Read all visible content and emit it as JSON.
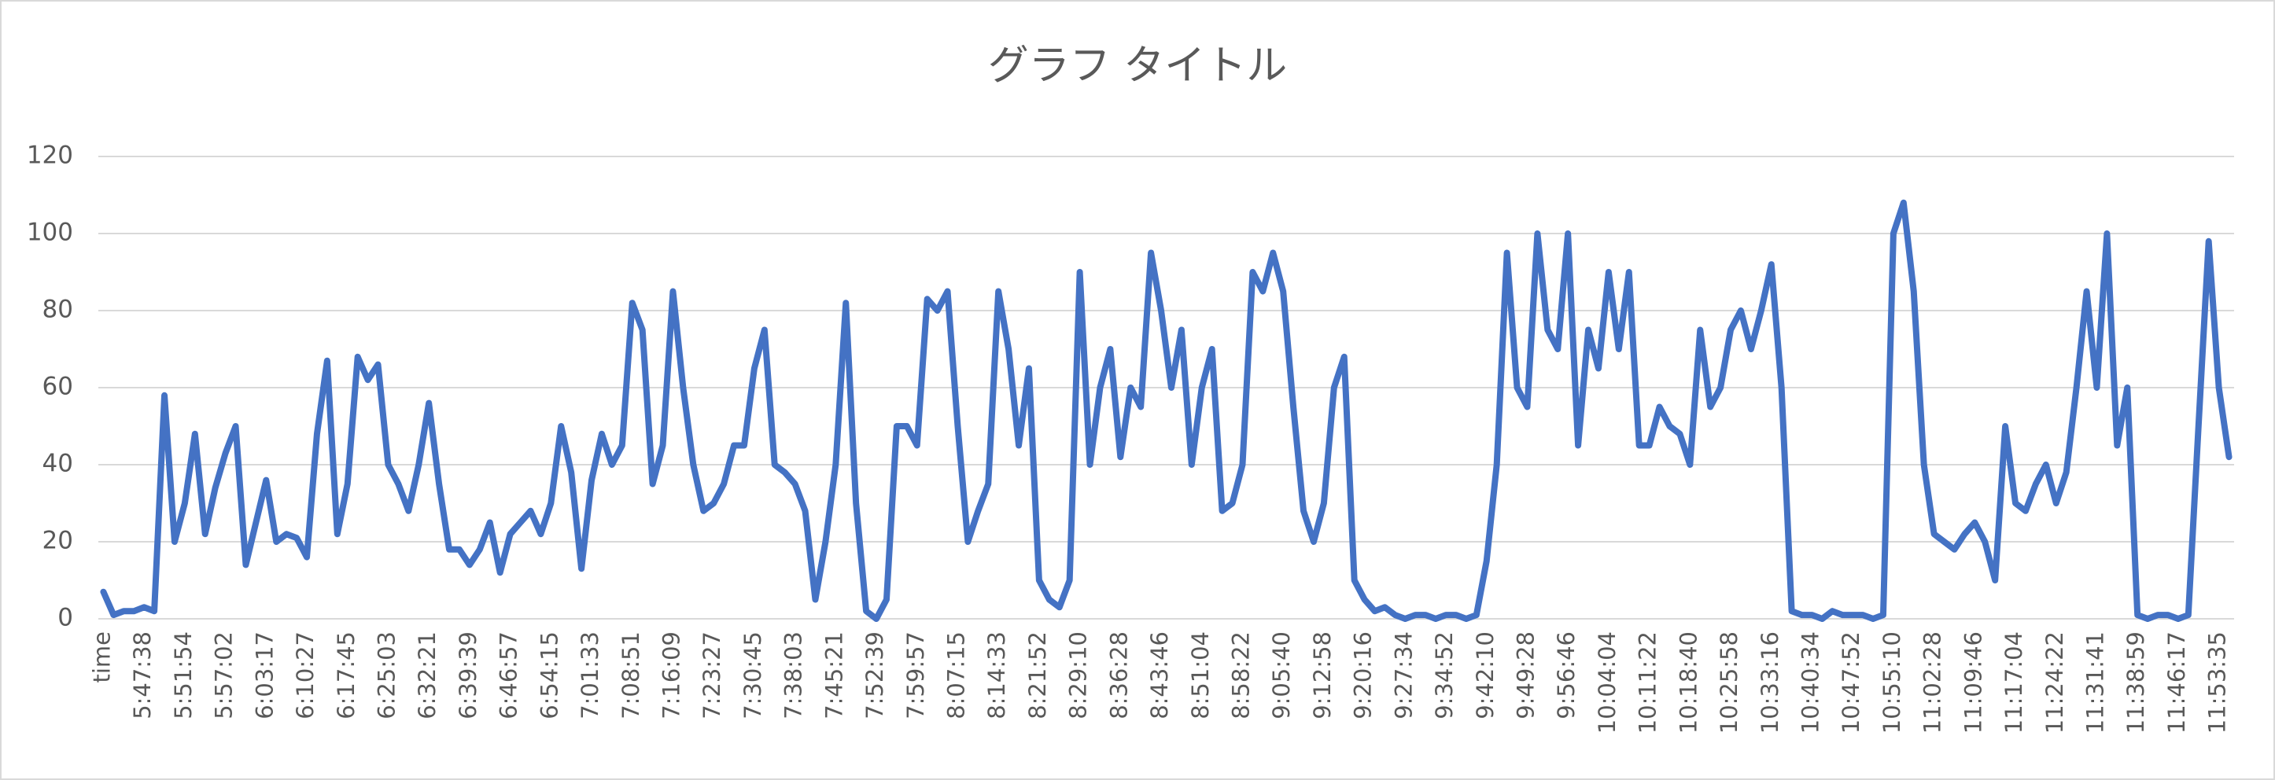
{
  "chart_data": {
    "type": "line",
    "title": "グラフ タイトル",
    "categories": [
      "time",
      null,
      null,
      null,
      "5:47:38",
      null,
      null,
      null,
      "5:51:54",
      null,
      null,
      null,
      "5:57:02",
      null,
      null,
      null,
      "6:03:17",
      null,
      null,
      null,
      "6:10:27",
      null,
      null,
      null,
      "6:17:45",
      null,
      null,
      null,
      "6:25:03",
      null,
      null,
      null,
      "6:32:21",
      null,
      null,
      null,
      "6:39:39",
      null,
      null,
      null,
      "6:46:57",
      null,
      null,
      null,
      "6:54:15",
      null,
      null,
      null,
      "7:01:33",
      null,
      null,
      null,
      "7:08:51",
      null,
      null,
      null,
      "7:16:09",
      null,
      null,
      null,
      "7:23:27",
      null,
      null,
      null,
      "7:30:45",
      null,
      null,
      null,
      "7:38:03",
      null,
      null,
      null,
      "7:45:21",
      null,
      null,
      null,
      "7:52:39",
      null,
      null,
      null,
      "7:59:57",
      null,
      null,
      null,
      "8:07:15",
      null,
      null,
      null,
      "8:14:33",
      null,
      null,
      null,
      "8:21:52",
      null,
      null,
      null,
      "8:29:10",
      null,
      null,
      null,
      "8:36:28",
      null,
      null,
      null,
      "8:43:46",
      null,
      null,
      null,
      "8:51:04",
      null,
      null,
      null,
      "8:58:22",
      null,
      null,
      null,
      "9:05:40",
      null,
      null,
      null,
      "9:12:58",
      null,
      null,
      null,
      "9:20:16",
      null,
      null,
      null,
      "9:27:34",
      null,
      null,
      null,
      "9:34:52",
      null,
      null,
      null,
      "9:42:10",
      null,
      null,
      null,
      "9:49:28",
      null,
      null,
      null,
      "9:56:46",
      null,
      null,
      null,
      "10:04:04",
      null,
      null,
      null,
      "10:11:22",
      null,
      null,
      null,
      "10:18:40",
      null,
      null,
      null,
      "10:25:58",
      null,
      null,
      null,
      "10:33:16",
      null,
      null,
      null,
      "10:40:34",
      null,
      null,
      null,
      "10:47:52",
      null,
      null,
      null,
      "10:55:10",
      null,
      null,
      null,
      "11:02:28",
      null,
      null,
      null,
      "11:09:46",
      null,
      null,
      null,
      "11:17:04",
      null,
      null,
      null,
      "11:24:22",
      null,
      null,
      null,
      "11:31:41",
      null,
      null,
      null,
      "11:38:59",
      null,
      null,
      null,
      "11:46:17",
      null,
      null,
      null,
      "11:53:35",
      null
    ],
    "series": [
      {
        "color": "#4472c4",
        "values": [
          7,
          1,
          2,
          2,
          3,
          2,
          58,
          20,
          30,
          48,
          22,
          34,
          43,
          50,
          14,
          25,
          36,
          20,
          22,
          21,
          16,
          48,
          67,
          22,
          35,
          68,
          62,
          66,
          40,
          35,
          28,
          40,
          56,
          35,
          18,
          18,
          14,
          18,
          25,
          12,
          22,
          25,
          28,
          22,
          30,
          50,
          38,
          13,
          36,
          48,
          40,
          45,
          82,
          75,
          35,
          45,
          85,
          60,
          40,
          28,
          30,
          35,
          45,
          45,
          65,
          75,
          40,
          38,
          35,
          28,
          5,
          20,
          40,
          82,
          30,
          2,
          0,
          5,
          50,
          50,
          45,
          83,
          80,
          85,
          50,
          20,
          28,
          35,
          85,
          70,
          45,
          65,
          10,
          5,
          3,
          10,
          90,
          40,
          60,
          70,
          42,
          60,
          55,
          95,
          80,
          60,
          75,
          40,
          60,
          70,
          28,
          30,
          40,
          90,
          85,
          95,
          85,
          55,
          28,
          20,
          30,
          60,
          68,
          10,
          5,
          2,
          3,
          1,
          0,
          1,
          1,
          0,
          1,
          1,
          0,
          1,
          15,
          40,
          95,
          60,
          55,
          100,
          75,
          70,
          100,
          45,
          75,
          65,
          90,
          70,
          90,
          45,
          45,
          55,
          50,
          48,
          40,
          75,
          55,
          60,
          75,
          80,
          70,
          80,
          92,
          60,
          2,
          1,
          1,
          0,
          2,
          1,
          1,
          1,
          0,
          1,
          100,
          108,
          85,
          40,
          22,
          20,
          18,
          22,
          25,
          20,
          10,
          50,
          30,
          28,
          35,
          40,
          30,
          38,
          60,
          85,
          60,
          100,
          45,
          60,
          1,
          0,
          1,
          1,
          0,
          1,
          50,
          98,
          60,
          42
        ]
      }
    ],
    "ylim": [
      0,
      120
    ],
    "yticks": [
      0,
      20,
      40,
      60,
      80,
      100,
      120
    ],
    "grid": true
  }
}
